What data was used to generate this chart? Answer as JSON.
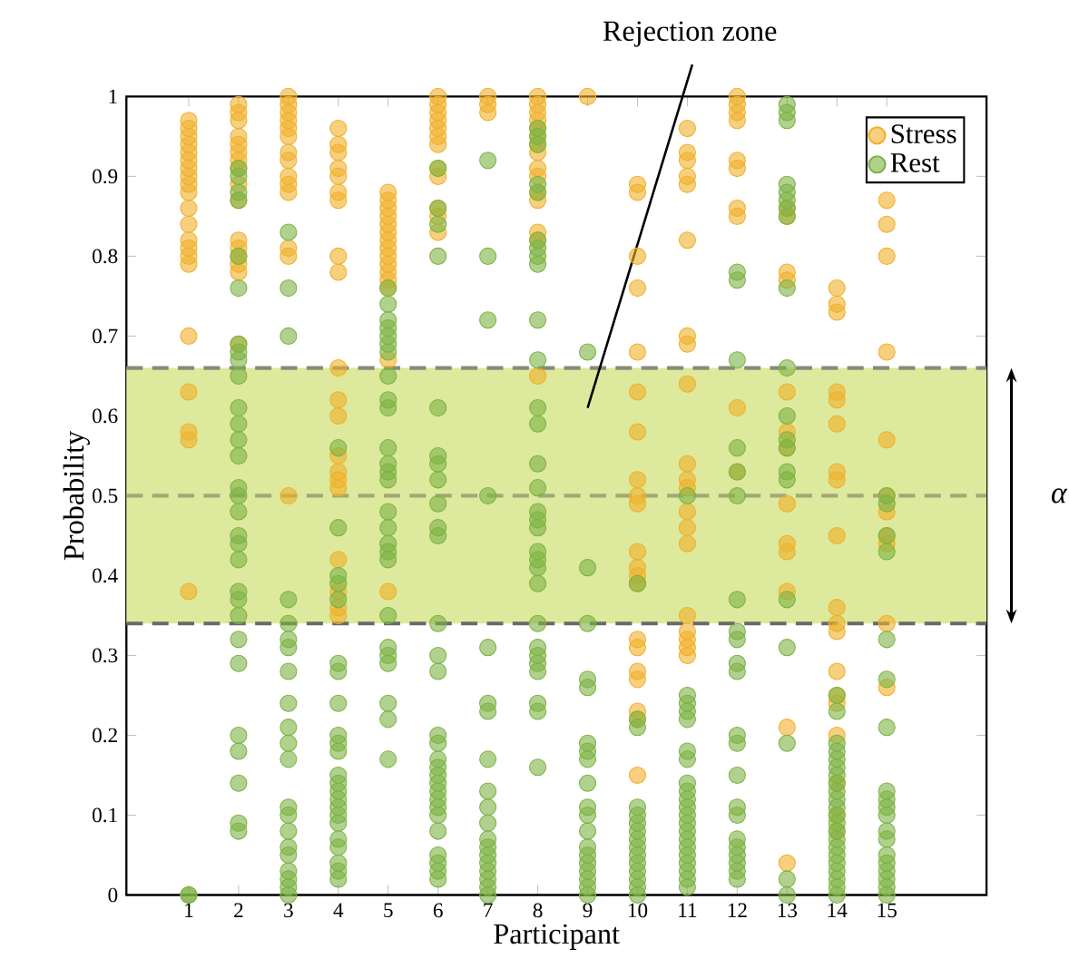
{
  "chart_data": {
    "type": "scatter",
    "xlabel": "Participant",
    "ylabel": "Probability",
    "xlim": [
      -0.25,
      17
    ],
    "ylim": [
      0,
      1
    ],
    "xticks": [
      1,
      2,
      3,
      4,
      5,
      6,
      7,
      8,
      9,
      10,
      11,
      12,
      13,
      14,
      15
    ],
    "yticks": [
      0,
      0.1,
      0.2,
      0.3,
      0.4,
      0.5,
      0.6,
      0.7,
      0.8,
      0.9,
      1
    ],
    "legend": "top right",
    "marker": "circle",
    "annotations": [
      "Rejection zone"
    ],
    "bands": [
      {
        "axis": "y",
        "from": 0.34,
        "to": 0.66,
        "label": "α",
        "color": "#dde99c"
      }
    ],
    "ref_lines": [
      {
        "axis": "y",
        "value": 0.34,
        "color": "#6a6a6a",
        "line_style": "dashed"
      },
      {
        "axis": "y",
        "value": 0.5,
        "color": "#a3a878",
        "line_style": "dashed"
      },
      {
        "axis": "y",
        "value": 0.66,
        "color": "#8a8a7a",
        "line_style": "dashed"
      }
    ],
    "series": [
      {
        "name": "Stress",
        "color": "#f0b02a",
        "x": [
          1,
          1,
          1,
          1,
          1,
          1,
          1,
          1,
          1,
          1,
          1,
          1,
          1,
          1,
          1,
          1,
          1,
          1,
          1,
          1,
          1,
          2,
          2,
          2,
          2,
          2,
          2,
          2,
          2,
          2,
          2,
          2,
          2,
          2,
          2,
          2,
          2,
          3,
          3,
          3,
          3,
          3,
          3,
          3,
          3,
          3,
          3,
          3,
          3,
          3,
          3,
          4,
          4,
          4,
          4,
          4,
          4,
          4,
          4,
          4,
          4,
          4,
          4,
          4,
          4,
          4,
          4,
          4,
          4,
          4,
          4,
          5,
          5,
          5,
          5,
          5,
          5,
          5,
          5,
          5,
          5,
          5,
          5,
          5,
          5,
          5,
          6,
          6,
          6,
          6,
          6,
          6,
          6,
          6,
          6,
          6,
          6,
          6,
          7,
          7,
          7,
          8,
          8,
          8,
          8,
          8,
          8,
          8,
          8,
          8,
          8,
          8,
          8,
          8,
          8,
          8,
          9,
          10,
          10,
          10,
          10,
          10,
          10,
          10,
          10,
          10,
          10,
          10,
          10,
          10,
          10,
          10,
          10,
          10,
          10,
          10,
          10,
          10,
          11,
          11,
          11,
          11,
          11,
          11,
          11,
          11,
          11,
          11,
          11,
          11,
          11,
          11,
          11,
          11,
          11,
          11,
          11,
          11,
          12,
          12,
          12,
          12,
          12,
          12,
          12,
          12,
          12,
          12,
          13,
          13,
          13,
          13,
          13,
          13,
          13,
          13,
          13,
          13,
          13,
          13,
          13,
          14,
          14,
          14,
          14,
          14,
          14,
          14,
          14,
          14,
          14,
          14,
          14,
          14,
          14,
          14,
          14,
          14,
          14,
          14,
          15,
          15,
          15,
          15,
          15,
          15,
          15,
          15,
          15,
          15,
          15
        ],
        "values": [
          0.97,
          0.96,
          0.95,
          0.94,
          0.93,
          0.92,
          0.91,
          0.9,
          0.89,
          0.88,
          0.86,
          0.84,
          0.82,
          0.81,
          0.8,
          0.79,
          0.7,
          0.63,
          0.58,
          0.57,
          0.38,
          0.99,
          0.98,
          0.97,
          0.95,
          0.94,
          0.93,
          0.92,
          0.91,
          0.89,
          0.87,
          0.82,
          0.81,
          0.8,
          0.79,
          0.78,
          0.69,
          1.0,
          0.99,
          0.98,
          0.97,
          0.96,
          0.95,
          0.93,
          0.92,
          0.9,
          0.89,
          0.88,
          0.81,
          0.8,
          0.5,
          0.96,
          0.94,
          0.93,
          0.91,
          0.9,
          0.88,
          0.87,
          0.8,
          0.78,
          0.66,
          0.62,
          0.6,
          0.55,
          0.53,
          0.52,
          0.51,
          0.42,
          0.38,
          0.36,
          0.35,
          0.88,
          0.87,
          0.86,
          0.85,
          0.84,
          0.83,
          0.82,
          0.81,
          0.8,
          0.79,
          0.78,
          0.77,
          0.76,
          0.67,
          0.38,
          1.0,
          0.99,
          0.98,
          0.97,
          0.96,
          0.95,
          0.94,
          0.91,
          0.9,
          0.86,
          0.85,
          0.83,
          1.0,
          0.99,
          0.98,
          1.0,
          0.99,
          0.98,
          0.97,
          0.96,
          0.95,
          0.94,
          0.93,
          0.91,
          0.9,
          0.88,
          0.87,
          0.83,
          0.82,
          0.65,
          1.0,
          0.89,
          0.88,
          0.8,
          0.76,
          0.68,
          0.63,
          0.58,
          0.52,
          0.5,
          0.49,
          0.43,
          0.41,
          0.4,
          0.39,
          0.32,
          0.31,
          0.28,
          0.27,
          0.23,
          0.22,
          0.15,
          0.96,
          0.93,
          0.92,
          0.9,
          0.89,
          0.82,
          0.7,
          0.69,
          0.64,
          0.54,
          0.52,
          0.51,
          0.48,
          0.46,
          0.44,
          0.35,
          0.33,
          0.32,
          0.31,
          0.3,
          1.0,
          0.99,
          0.98,
          0.97,
          0.92,
          0.91,
          0.86,
          0.85,
          0.61,
          0.53,
          0.86,
          0.85,
          0.78,
          0.77,
          0.63,
          0.58,
          0.56,
          0.49,
          0.44,
          0.43,
          0.38,
          0.21,
          0.04,
          0.76,
          0.74,
          0.73,
          0.63,
          0.62,
          0.59,
          0.53,
          0.52,
          0.45,
          0.36,
          0.34,
          0.33,
          0.28,
          0.25,
          0.24,
          0.2,
          0.14,
          0.1,
          0.08,
          0.87,
          0.84,
          0.8,
          0.68,
          0.57,
          0.5,
          0.48,
          0.45,
          0.44,
          0.34,
          0.26
        ]
      },
      {
        "name": "Rest",
        "color": "#7db244",
        "x": [
          1,
          1,
          2,
          2,
          2,
          2,
          2,
          2,
          2,
          2,
          2,
          2,
          2,
          2,
          2,
          2,
          2,
          2,
          2,
          2,
          2,
          2,
          2,
          2,
          2,
          2,
          2,
          2,
          2,
          2,
          2,
          2,
          3,
          3,
          3,
          3,
          3,
          3,
          3,
          3,
          3,
          3,
          3,
          3,
          3,
          3,
          3,
          3,
          3,
          3,
          3,
          3,
          3,
          4,
          4,
          4,
          4,
          4,
          4,
          4,
          4,
          4,
          4,
          4,
          4,
          4,
          4,
          4,
          4,
          4,
          4,
          4,
          4,
          4,
          4,
          4,
          5,
          5,
          5,
          5,
          5,
          5,
          5,
          5,
          5,
          5,
          5,
          5,
          5,
          5,
          5,
          5,
          5,
          5,
          5,
          5,
          5,
          5,
          5,
          5,
          5,
          5,
          6,
          6,
          6,
          6,
          6,
          6,
          6,
          6,
          6,
          6,
          6,
          6,
          6,
          6,
          6,
          6,
          6,
          6,
          6,
          6,
          6,
          6,
          6,
          6,
          6,
          6,
          6,
          6,
          6,
          7,
          7,
          7,
          7,
          7,
          7,
          7,
          7,
          7,
          7,
          7,
          7,
          7,
          7,
          7,
          7,
          7,
          7,
          7,
          8,
          8,
          8,
          8,
          8,
          8,
          8,
          8,
          8,
          8,
          8,
          8,
          8,
          8,
          8,
          8,
          8,
          8,
          8,
          8,
          8,
          8,
          8,
          8,
          8,
          8,
          8,
          8,
          8,
          8,
          9,
          9,
          9,
          9,
          9,
          9,
          9,
          9,
          9,
          9,
          9,
          9,
          9,
          9,
          9,
          9,
          9,
          9,
          9,
          10,
          10,
          10,
          10,
          10,
          10,
          10,
          10,
          10,
          10,
          10,
          10,
          10,
          10,
          10,
          11,
          11,
          11,
          11,
          11,
          11,
          11,
          11,
          11,
          11,
          11,
          11,
          11,
          11,
          11,
          11,
          11,
          11,
          11,
          11,
          11,
          12,
          12,
          12,
          12,
          12,
          12,
          12,
          12,
          12,
          12,
          12,
          12,
          12,
          12,
          12,
          12,
          12,
          12,
          12,
          12,
          12,
          12,
          13,
          13,
          13,
          13,
          13,
          13,
          13,
          13,
          13,
          13,
          13,
          13,
          13,
          13,
          13,
          13,
          13,
          13,
          13,
          13,
          14,
          14,
          14,
          14,
          14,
          14,
          14,
          14,
          14,
          14,
          14,
          14,
          14,
          14,
          14,
          14,
          14,
          14,
          14,
          14,
          14,
          14,
          15,
          15,
          15,
          15,
          15,
          15,
          15,
          15,
          15,
          15,
          15,
          15,
          15,
          15,
          15,
          15,
          15,
          15,
          15
        ],
        "values": [
          0.0,
          0.0,
          0.91,
          0.9,
          0.88,
          0.87,
          0.8,
          0.76,
          0.69,
          0.68,
          0.67,
          0.65,
          0.61,
          0.59,
          0.57,
          0.55,
          0.51,
          0.5,
          0.48,
          0.45,
          0.44,
          0.42,
          0.38,
          0.37,
          0.35,
          0.32,
          0.29,
          0.2,
          0.18,
          0.14,
          0.09,
          0.08,
          0.83,
          0.76,
          0.7,
          0.37,
          0.34,
          0.32,
          0.31,
          0.28,
          0.24,
          0.21,
          0.19,
          0.17,
          0.11,
          0.1,
          0.08,
          0.06,
          0.05,
          0.03,
          0.02,
          0.01,
          0.0,
          0.56,
          0.46,
          0.4,
          0.39,
          0.37,
          0.29,
          0.28,
          0.24,
          0.2,
          0.19,
          0.18,
          0.15,
          0.14,
          0.13,
          0.12,
          0.11,
          0.1,
          0.09,
          0.07,
          0.06,
          0.04,
          0.03,
          0.02,
          0.76,
          0.74,
          0.72,
          0.71,
          0.7,
          0.69,
          0.68,
          0.65,
          0.62,
          0.61,
          0.56,
          0.54,
          0.53,
          0.52,
          0.48,
          0.46,
          0.44,
          0.43,
          0.42,
          0.35,
          0.31,
          0.3,
          0.29,
          0.24,
          0.22,
          0.17,
          0.91,
          0.86,
          0.84,
          0.8,
          0.61,
          0.55,
          0.54,
          0.52,
          0.49,
          0.46,
          0.45,
          0.34,
          0.3,
          0.28,
          0.2,
          0.19,
          0.17,
          0.16,
          0.15,
          0.14,
          0.13,
          0.12,
          0.11,
          0.1,
          0.08,
          0.05,
          0.04,
          0.03,
          0.02,
          0.92,
          0.8,
          0.72,
          0.5,
          0.31,
          0.24,
          0.23,
          0.17,
          0.13,
          0.11,
          0.09,
          0.07,
          0.06,
          0.05,
          0.04,
          0.03,
          0.02,
          0.01,
          0.0,
          0.96,
          0.95,
          0.94,
          0.89,
          0.88,
          0.82,
          0.81,
          0.8,
          0.79,
          0.72,
          0.67,
          0.61,
          0.59,
          0.54,
          0.51,
          0.48,
          0.47,
          0.46,
          0.43,
          0.42,
          0.41,
          0.39,
          0.34,
          0.31,
          0.3,
          0.29,
          0.28,
          0.24,
          0.23,
          0.16,
          0.68,
          0.41,
          0.34,
          0.27,
          0.26,
          0.19,
          0.18,
          0.17,
          0.14,
          0.11,
          0.1,
          0.08,
          0.06,
          0.05,
          0.04,
          0.03,
          0.02,
          0.01,
          0.0,
          0.39,
          0.22,
          0.21,
          0.11,
          0.1,
          0.09,
          0.08,
          0.07,
          0.06,
          0.05,
          0.04,
          0.03,
          0.02,
          0.01,
          0.0,
          0.5,
          0.25,
          0.24,
          0.23,
          0.22,
          0.18,
          0.17,
          0.14,
          0.13,
          0.12,
          0.11,
          0.1,
          0.09,
          0.08,
          0.07,
          0.06,
          0.05,
          0.04,
          0.03,
          0.02,
          0.01,
          0.78,
          0.77,
          0.67,
          0.56,
          0.53,
          0.5,
          0.37,
          0.33,
          0.32,
          0.29,
          0.28,
          0.2,
          0.19,
          0.15,
          0.11,
          0.1,
          0.07,
          0.06,
          0.05,
          0.04,
          0.03,
          0.02,
          0.99,
          0.98,
          0.97,
          0.89,
          0.88,
          0.87,
          0.86,
          0.85,
          0.76,
          0.66,
          0.6,
          0.57,
          0.56,
          0.53,
          0.52,
          0.37,
          0.31,
          0.19,
          0.02,
          0.0,
          0.25,
          0.23,
          0.19,
          0.18,
          0.17,
          0.16,
          0.15,
          0.14,
          0.13,
          0.12,
          0.11,
          0.1,
          0.09,
          0.08,
          0.07,
          0.06,
          0.05,
          0.04,
          0.03,
          0.02,
          0.01,
          0.0,
          0.5,
          0.49,
          0.45,
          0.43,
          0.32,
          0.27,
          0.21,
          0.13,
          0.12,
          0.11,
          0.1,
          0.08,
          0.07,
          0.05,
          0.04,
          0.03,
          0.02,
          0.01,
          0.0
        ]
      }
    ]
  }
}
